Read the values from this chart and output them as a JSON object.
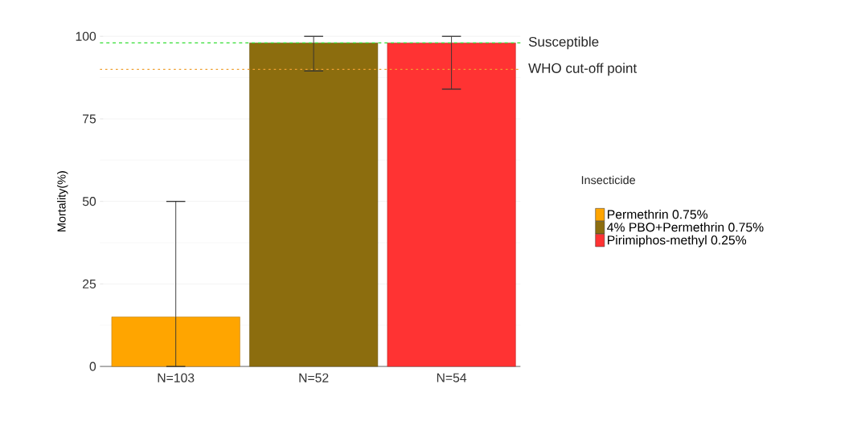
{
  "chart_data": {
    "type": "bar",
    "ylabel": "Mortality(%)",
    "legend_title": "Insecticide",
    "categories": [
      "N=103",
      "N=52",
      "N=54"
    ],
    "series": [
      {
        "name": "Permethrin 0.75%",
        "color": "#ffa500",
        "values": [
          15,
          null,
          null
        ],
        "errors": [
          [
            0,
            50
          ],
          null,
          null
        ]
      },
      {
        "name": "4% PBO+Permethrin 0.75%",
        "color": "#8c6d0e",
        "values": [
          null,
          98,
          null
        ],
        "errors": [
          null,
          [
            89.5,
            100
          ],
          null
        ]
      },
      {
        "name": "Pirimiphos-methyl 0.25%",
        "color": "#ff3333",
        "values": [
          null,
          null,
          98
        ],
        "errors": [
          null,
          null,
          [
            84,
            100
          ]
        ]
      }
    ],
    "ylim": [
      0,
      100
    ],
    "yticks": [
      0,
      25,
      50,
      75,
      100
    ],
    "grid": "y",
    "legend": "right",
    "ref_lines": [
      {
        "axis": "y",
        "value": 98,
        "label": "Susceptible",
        "color": "#33dd33",
        "line_style": "dashed"
      },
      {
        "axis": "y",
        "value": 90,
        "label": "WHO cut-off point",
        "color": "#f0a030",
        "line_style": "dotted"
      }
    ]
  }
}
